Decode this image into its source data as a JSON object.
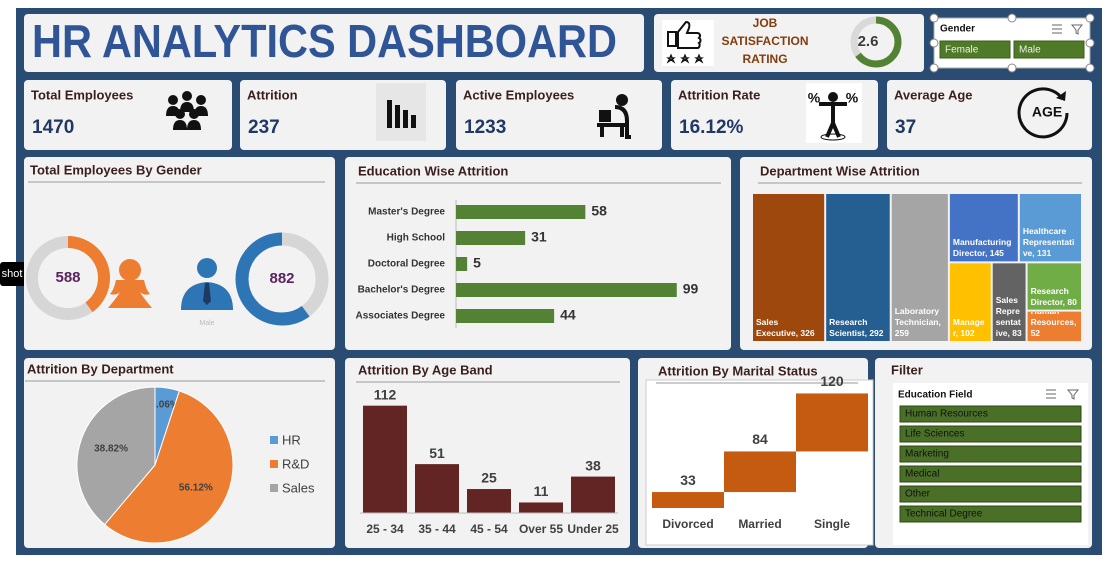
{
  "tooltip": "shot",
  "header": {
    "title": "HR ANALYTICS DASHBOARD"
  },
  "job_satisfaction": {
    "label": [
      "JOB",
      "SATISFACTION",
      "RATING"
    ],
    "value": 2.6,
    "ylim": [
      0,
      4
    ],
    "color": "#548235"
  },
  "gender_slicer": {
    "title": "Gender",
    "items": [
      "Female",
      "Male"
    ]
  },
  "kpis": [
    {
      "label": "Total Employees",
      "value": 1470
    },
    {
      "label": "Attrition",
      "value": 237
    },
    {
      "label": "Active Employees",
      "value": 1233
    },
    {
      "label": "Attrition Rate",
      "value": "16.12%",
      "icon_text": [
        "%",
        "%"
      ]
    },
    {
      "label": "Average Age",
      "value": 37,
      "icon_text": "AGE"
    }
  ],
  "chart_data": [
    {
      "type": "donut",
      "title": "Total Employees By Gender",
      "categories": [
        null,
        "Male"
      ],
      "values": [
        588,
        882
      ],
      "colors": [
        "#ed7d31",
        "#2e75b6"
      ]
    },
    {
      "type": "barh",
      "title": "Education Wise Attrition",
      "categories": [
        "Master's Degree",
        "High School",
        "Doctoral Degree",
        "Bachelor's Degree",
        "Associates Degree"
      ],
      "values": [
        58,
        31,
        5,
        99,
        44
      ],
      "color": "#548235",
      "xlim": [
        0,
        100
      ]
    },
    {
      "type": "treemap",
      "title": "Department Wise Attrition",
      "values": [
        326,
        292,
        259,
        145,
        131,
        102,
        83,
        80,
        52
      ],
      "value_labels": [
        "Sales Executive, 326",
        "Research Scientist, 292",
        "Laboratory Technician, 259",
        "Manufacturing Director, 145",
        "Healthcare Representative, 131",
        "Manager, 102",
        "Sales Representative, 83",
        "Research Director, 80",
        "Human Resources, 52"
      ],
      "colors": [
        "#9e480e",
        "#255e91",
        "#a5a5a5",
        "#4472c4",
        "#5b9bd5",
        "#ffc000",
        "#636363",
        "#70ad47",
        "#ed7d31"
      ]
    },
    {
      "type": "pie",
      "title": "Attrition By Department",
      "categories": [
        "HR",
        "R&D",
        "Sales"
      ],
      "values": [
        5.06,
        56.12,
        38.82
      ],
      "value_labels": [
        "5.06%",
        "56.12%",
        "38.82%"
      ],
      "colors": [
        "#5b9bd5",
        "#ed7d31",
        "#a5a5a5"
      ],
      "legend": "right"
    },
    {
      "type": "bar",
      "title": "Attrition By Age Band",
      "categories": [
        "25 - 34",
        "35 - 44",
        "45 - 54",
        "Over 55",
        "Under 25"
      ],
      "values": [
        112,
        51,
        25,
        11,
        38
      ],
      "color": "#632523",
      "ylim": [
        0,
        120
      ]
    },
    {
      "type": "waterfall",
      "title": "Attrition By Marital Status",
      "categories": [
        "Divorced",
        "Married",
        "Single"
      ],
      "values": [
        33,
        84,
        120
      ],
      "color": "#c55a11",
      "ylim": [
        0,
        240
      ]
    }
  ],
  "filter": {
    "title": "Filter",
    "slicer_title": "Education Field",
    "items": [
      "Human Resources",
      "Life Sciences",
      "Marketing",
      "Medical",
      "Other",
      "Technical Degree"
    ]
  }
}
